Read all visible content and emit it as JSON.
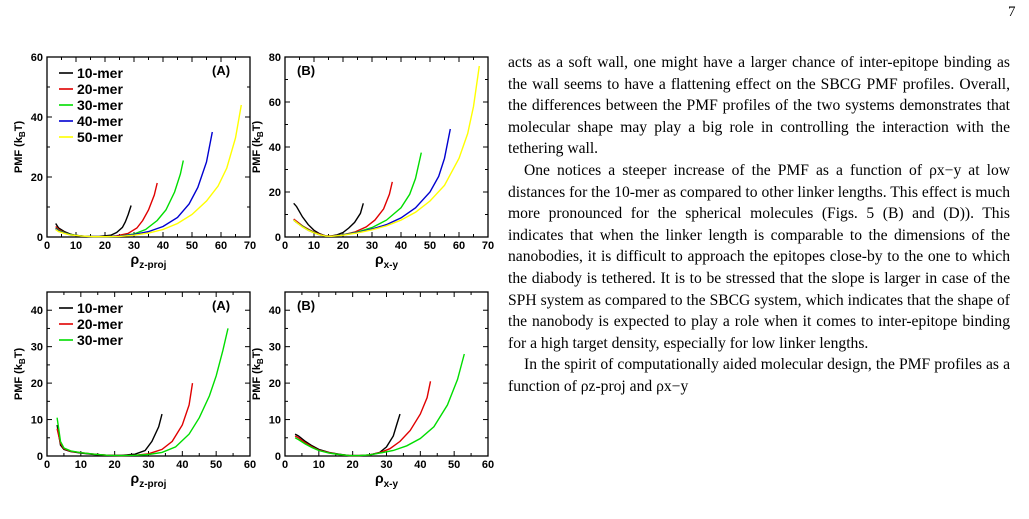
{
  "page": {
    "number": "7"
  },
  "figure": {
    "panels": [
      {
        "id": "top-left",
        "panel_label": "(A)",
        "xlabel_main": "ρ",
        "xlabel_sub": "z-proj",
        "ylabel_main": "PMF (k",
        "ylabel_sub": "B",
        "ylabel_end": "T)",
        "xticks": [
          "0",
          "10",
          "20",
          "30",
          "40",
          "50",
          "60",
          "70"
        ],
        "yticks": [
          "0",
          "20",
          "40",
          "60"
        ],
        "legend": [
          "10-mer",
          "20-mer",
          "30-mer",
          "40-mer",
          "50-mer"
        ]
      },
      {
        "id": "top-right",
        "panel_label": "(B)",
        "xlabel_main": "ρ",
        "xlabel_sub": "x-y",
        "ylabel_main": "PMF (k",
        "ylabel_sub": "B",
        "ylabel_end": "T)",
        "xticks": [
          "0",
          "10",
          "20",
          "30",
          "40",
          "50",
          "60",
          "70"
        ],
        "yticks": [
          "0",
          "20",
          "40",
          "60",
          "80"
        ],
        "legend": []
      },
      {
        "id": "bottom-left",
        "panel_label": "(A)",
        "xlabel_main": "ρ",
        "xlabel_sub": "z-proj",
        "ylabel_main": "PMF (k",
        "ylabel_sub": "B",
        "ylabel_end": "T)",
        "xticks": [
          "0",
          "10",
          "20",
          "30",
          "40",
          "50",
          "60"
        ],
        "yticks": [
          "0",
          "10",
          "20",
          "30",
          "40"
        ],
        "legend": [
          "10-mer",
          "20-mer",
          "30-mer"
        ]
      },
      {
        "id": "bottom-right",
        "panel_label": "(B)",
        "xlabel_main": "ρ",
        "xlabel_sub": "x-y",
        "ylabel_main": "PMF (k",
        "ylabel_sub": "B",
        "ylabel_end": "T)",
        "xticks": [
          "0",
          "10",
          "20",
          "30",
          "40",
          "50",
          "60"
        ],
        "yticks": [
          "0",
          "10",
          "20",
          "30",
          "40"
        ],
        "legend": []
      }
    ]
  },
  "chart_data": [
    {
      "type": "line",
      "panel": "top-left",
      "xlim": [
        0,
        70
      ],
      "ylim": [
        0,
        60
      ],
      "series": [
        {
          "name": "10-mer",
          "color": "#000000",
          "x": [
            3,
            4,
            6,
            8,
            10,
            14,
            18,
            22,
            24,
            26,
            27,
            28,
            29
          ],
          "y": [
            4.5,
            3,
            1.8,
            1,
            0.5,
            0.2,
            0.2,
            0.6,
            1.5,
            3.2,
            5,
            7.5,
            10.5
          ]
        },
        {
          "name": "20-mer",
          "color": "#e00000",
          "x": [
            3,
            4,
            6,
            8,
            12,
            16,
            20,
            24,
            28,
            31,
            33,
            35,
            37,
            38
          ],
          "y": [
            3.5,
            2.5,
            1.5,
            0.8,
            0.3,
            0.1,
            0.1,
            0.4,
            1.2,
            3,
            5.5,
            9,
            14,
            18
          ]
        },
        {
          "name": "30-mer",
          "color": "#00dd00",
          "x": [
            3,
            4,
            6,
            8,
            12,
            16,
            20,
            25,
            30,
            34,
            38,
            41,
            44,
            46,
            47
          ],
          "y": [
            3,
            2.2,
            1.4,
            0.8,
            0.3,
            0.1,
            0.1,
            0.3,
            1,
            2.5,
            5.5,
            9,
            15,
            21,
            25.5
          ]
        },
        {
          "name": "40-mer",
          "color": "#0000d0",
          "x": [
            3,
            4,
            6,
            8,
            12,
            16,
            20,
            25,
            30,
            35,
            40,
            45,
            49,
            52,
            55,
            57
          ],
          "y": [
            2.8,
            2,
            1.3,
            0.7,
            0.3,
            0.1,
            0.1,
            0.3,
            0.8,
            1.8,
            3.5,
            6.5,
            11,
            16.5,
            25,
            35
          ]
        },
        {
          "name": "50-mer",
          "color": "#ffff00",
          "x": [
            3,
            4,
            6,
            8,
            12,
            16,
            20,
            25,
            30,
            35,
            40,
            45,
            50,
            55,
            59,
            62,
            65,
            67
          ],
          "y": [
            2.5,
            1.8,
            1.2,
            0.7,
            0.3,
            0.1,
            0.1,
            0.2,
            0.6,
            1.3,
            2.5,
            4.5,
            7.5,
            12,
            17,
            23,
            33,
            44
          ]
        }
      ]
    },
    {
      "type": "line",
      "panel": "top-right",
      "xlim": [
        0,
        70
      ],
      "ylim": [
        0,
        80
      ],
      "series": [
        {
          "name": "10-mer",
          "color": "#000000",
          "x": [
            3,
            4,
            6,
            8,
            10,
            12,
            14,
            16,
            18,
            20,
            22,
            24,
            26,
            27
          ],
          "y": [
            15,
            13.5,
            9,
            5.5,
            3,
            1.4,
            0.5,
            0.5,
            1,
            2,
            4,
            6.5,
            10.5,
            15
          ]
        },
        {
          "name": "20-mer",
          "color": "#e00000",
          "x": [
            3,
            4,
            6,
            8,
            10,
            12,
            14,
            16,
            20,
            24,
            28,
            31,
            34,
            36,
            37
          ],
          "y": [
            8,
            7,
            5,
            3.5,
            2.2,
            1.2,
            0.5,
            0.4,
            1,
            2.2,
            4.5,
            7.5,
            12.5,
            19,
            24.5
          ]
        },
        {
          "name": "30-mer",
          "color": "#00dd00",
          "x": [
            3,
            4,
            6,
            8,
            10,
            12,
            14,
            16,
            20,
            25,
            30,
            35,
            40,
            43,
            45,
            47
          ],
          "y": [
            7.5,
            6.5,
            4.8,
            3.2,
            2,
            1,
            0.4,
            0.3,
            1,
            2.2,
            4.2,
            7.5,
            13,
            19,
            26,
            37.5
          ]
        },
        {
          "name": "40-mer",
          "color": "#0000d0",
          "x": [
            3,
            4,
            6,
            8,
            10,
            12,
            14,
            16,
            20,
            25,
            30,
            35,
            40,
            45,
            50,
            53,
            55,
            57
          ],
          "y": [
            7.5,
            6.5,
            4.6,
            3,
            1.8,
            1,
            0.4,
            0.3,
            0.9,
            2,
            3.5,
            5.5,
            8.5,
            13,
            20,
            27,
            35,
            48
          ]
        },
        {
          "name": "50-mer",
          "color": "#ffff00",
          "x": [
            3,
            4,
            6,
            8,
            10,
            12,
            14,
            16,
            20,
            25,
            30,
            35,
            40,
            45,
            50,
            55,
            60,
            63,
            65,
            67
          ],
          "y": [
            7.5,
            6.5,
            4.5,
            3,
            1.8,
            1,
            0.4,
            0.3,
            0.8,
            1.8,
            3.2,
            5,
            7.5,
            11,
            16,
            23,
            35,
            46,
            58,
            76
          ]
        }
      ]
    },
    {
      "type": "line",
      "panel": "bottom-left",
      "xlim": [
        0,
        60
      ],
      "ylim": [
        0,
        45
      ],
      "series": [
        {
          "name": "10-mer",
          "color": "#000000",
          "x": [
            3,
            4,
            5,
            7,
            10,
            14,
            18,
            22,
            26,
            29,
            31,
            33,
            34
          ],
          "y": [
            8.5,
            3,
            1.8,
            1.2,
            0.8,
            0.4,
            0.2,
            0.2,
            0.5,
            1.5,
            4,
            8,
            11.5
          ]
        },
        {
          "name": "20-mer",
          "color": "#e00000",
          "x": [
            3,
            4,
            5,
            7,
            10,
            14,
            18,
            22,
            26,
            30,
            34,
            37,
            40,
            42,
            43
          ],
          "y": [
            7.5,
            3.5,
            2,
            1.3,
            0.9,
            0.5,
            0.2,
            0.1,
            0.2,
            0.6,
            1.8,
            4,
            8.5,
            14,
            20
          ]
        },
        {
          "name": "30-mer",
          "color": "#00dd00",
          "x": [
            3,
            4,
            5,
            7,
            10,
            14,
            18,
            22,
            26,
            30,
            34,
            38,
            42,
            45,
            48,
            50,
            52,
            53.5
          ],
          "y": [
            10.5,
            4,
            2.2,
            1.4,
            0.9,
            0.5,
            0.2,
            0.1,
            0.2,
            0.4,
            1,
            2.5,
            6,
            10.5,
            16.5,
            22,
            29,
            35
          ]
        }
      ]
    },
    {
      "type": "line",
      "panel": "bottom-right",
      "xlim": [
        0,
        60
      ],
      "ylim": [
        0,
        45
      ],
      "series": [
        {
          "name": "10-mer",
          "color": "#000000",
          "x": [
            3,
            4,
            6,
            8,
            10,
            13,
            16,
            19,
            22,
            25,
            28,
            30,
            32,
            33,
            34
          ],
          "y": [
            6,
            5.5,
            4,
            2.8,
            1.8,
            1,
            0.5,
            0.1,
            0.1,
            0.3,
            1,
            2.5,
            5.5,
            8.5,
            11.5
          ]
        },
        {
          "name": "20-mer",
          "color": "#e00000",
          "x": [
            3,
            4,
            6,
            8,
            10,
            13,
            16,
            19,
            22,
            25,
            28,
            31,
            34,
            37,
            40,
            42,
            43
          ],
          "y": [
            5.5,
            5,
            3.6,
            2.5,
            1.6,
            0.9,
            0.4,
            0.1,
            0.1,
            0.3,
            0.9,
            2,
            4,
            7,
            11.5,
            16,
            20.5
          ]
        },
        {
          "name": "30-mer",
          "color": "#00dd00",
          "x": [
            3,
            4,
            6,
            8,
            10,
            13,
            16,
            19,
            22,
            25,
            28,
            32,
            36,
            40,
            44,
            48,
            51,
            53
          ],
          "y": [
            5,
            4.5,
            3.3,
            2.3,
            1.5,
            0.8,
            0.4,
            0.1,
            0.1,
            0.3,
            0.8,
            1.5,
            2.8,
            4.8,
            8,
            14,
            21,
            28
          ]
        }
      ]
    }
  ],
  "text": {
    "paragraphs": [
      "acts as a soft wall, one might have a larger chance of inter-epitope binding as the wall seems to have a flattening effect on the SBCG PMF profiles. Overall, the differences between the PMF profiles of the two systems demonstrates that molecular shape may play a big role in controlling the interaction with the tethering wall.",
      "One notices a steeper increase of the PMF as a function of ρx−y at low distances for the 10-mer as compared to other linker lengths. This effect is much more pronounced for the spherical molecules (Figs. 5 (B) and (D)). This indicates that when the linker length is comparable to the dimensions of the nanobodies, it is difficult to approach the epitopes close-by to the one to which the diabody is tethered. It is to be stressed that the slope is larger in case of the SPH system as compared to the SBCG system, which indicates that the shape of the nanobody is expected to play a role when it comes to inter-epitope binding for a high target density, especially for low linker lengths.",
      "In the spirit of computationally aided molecular design, the PMF profiles as a function of ρz-proj and ρx−y"
    ]
  }
}
